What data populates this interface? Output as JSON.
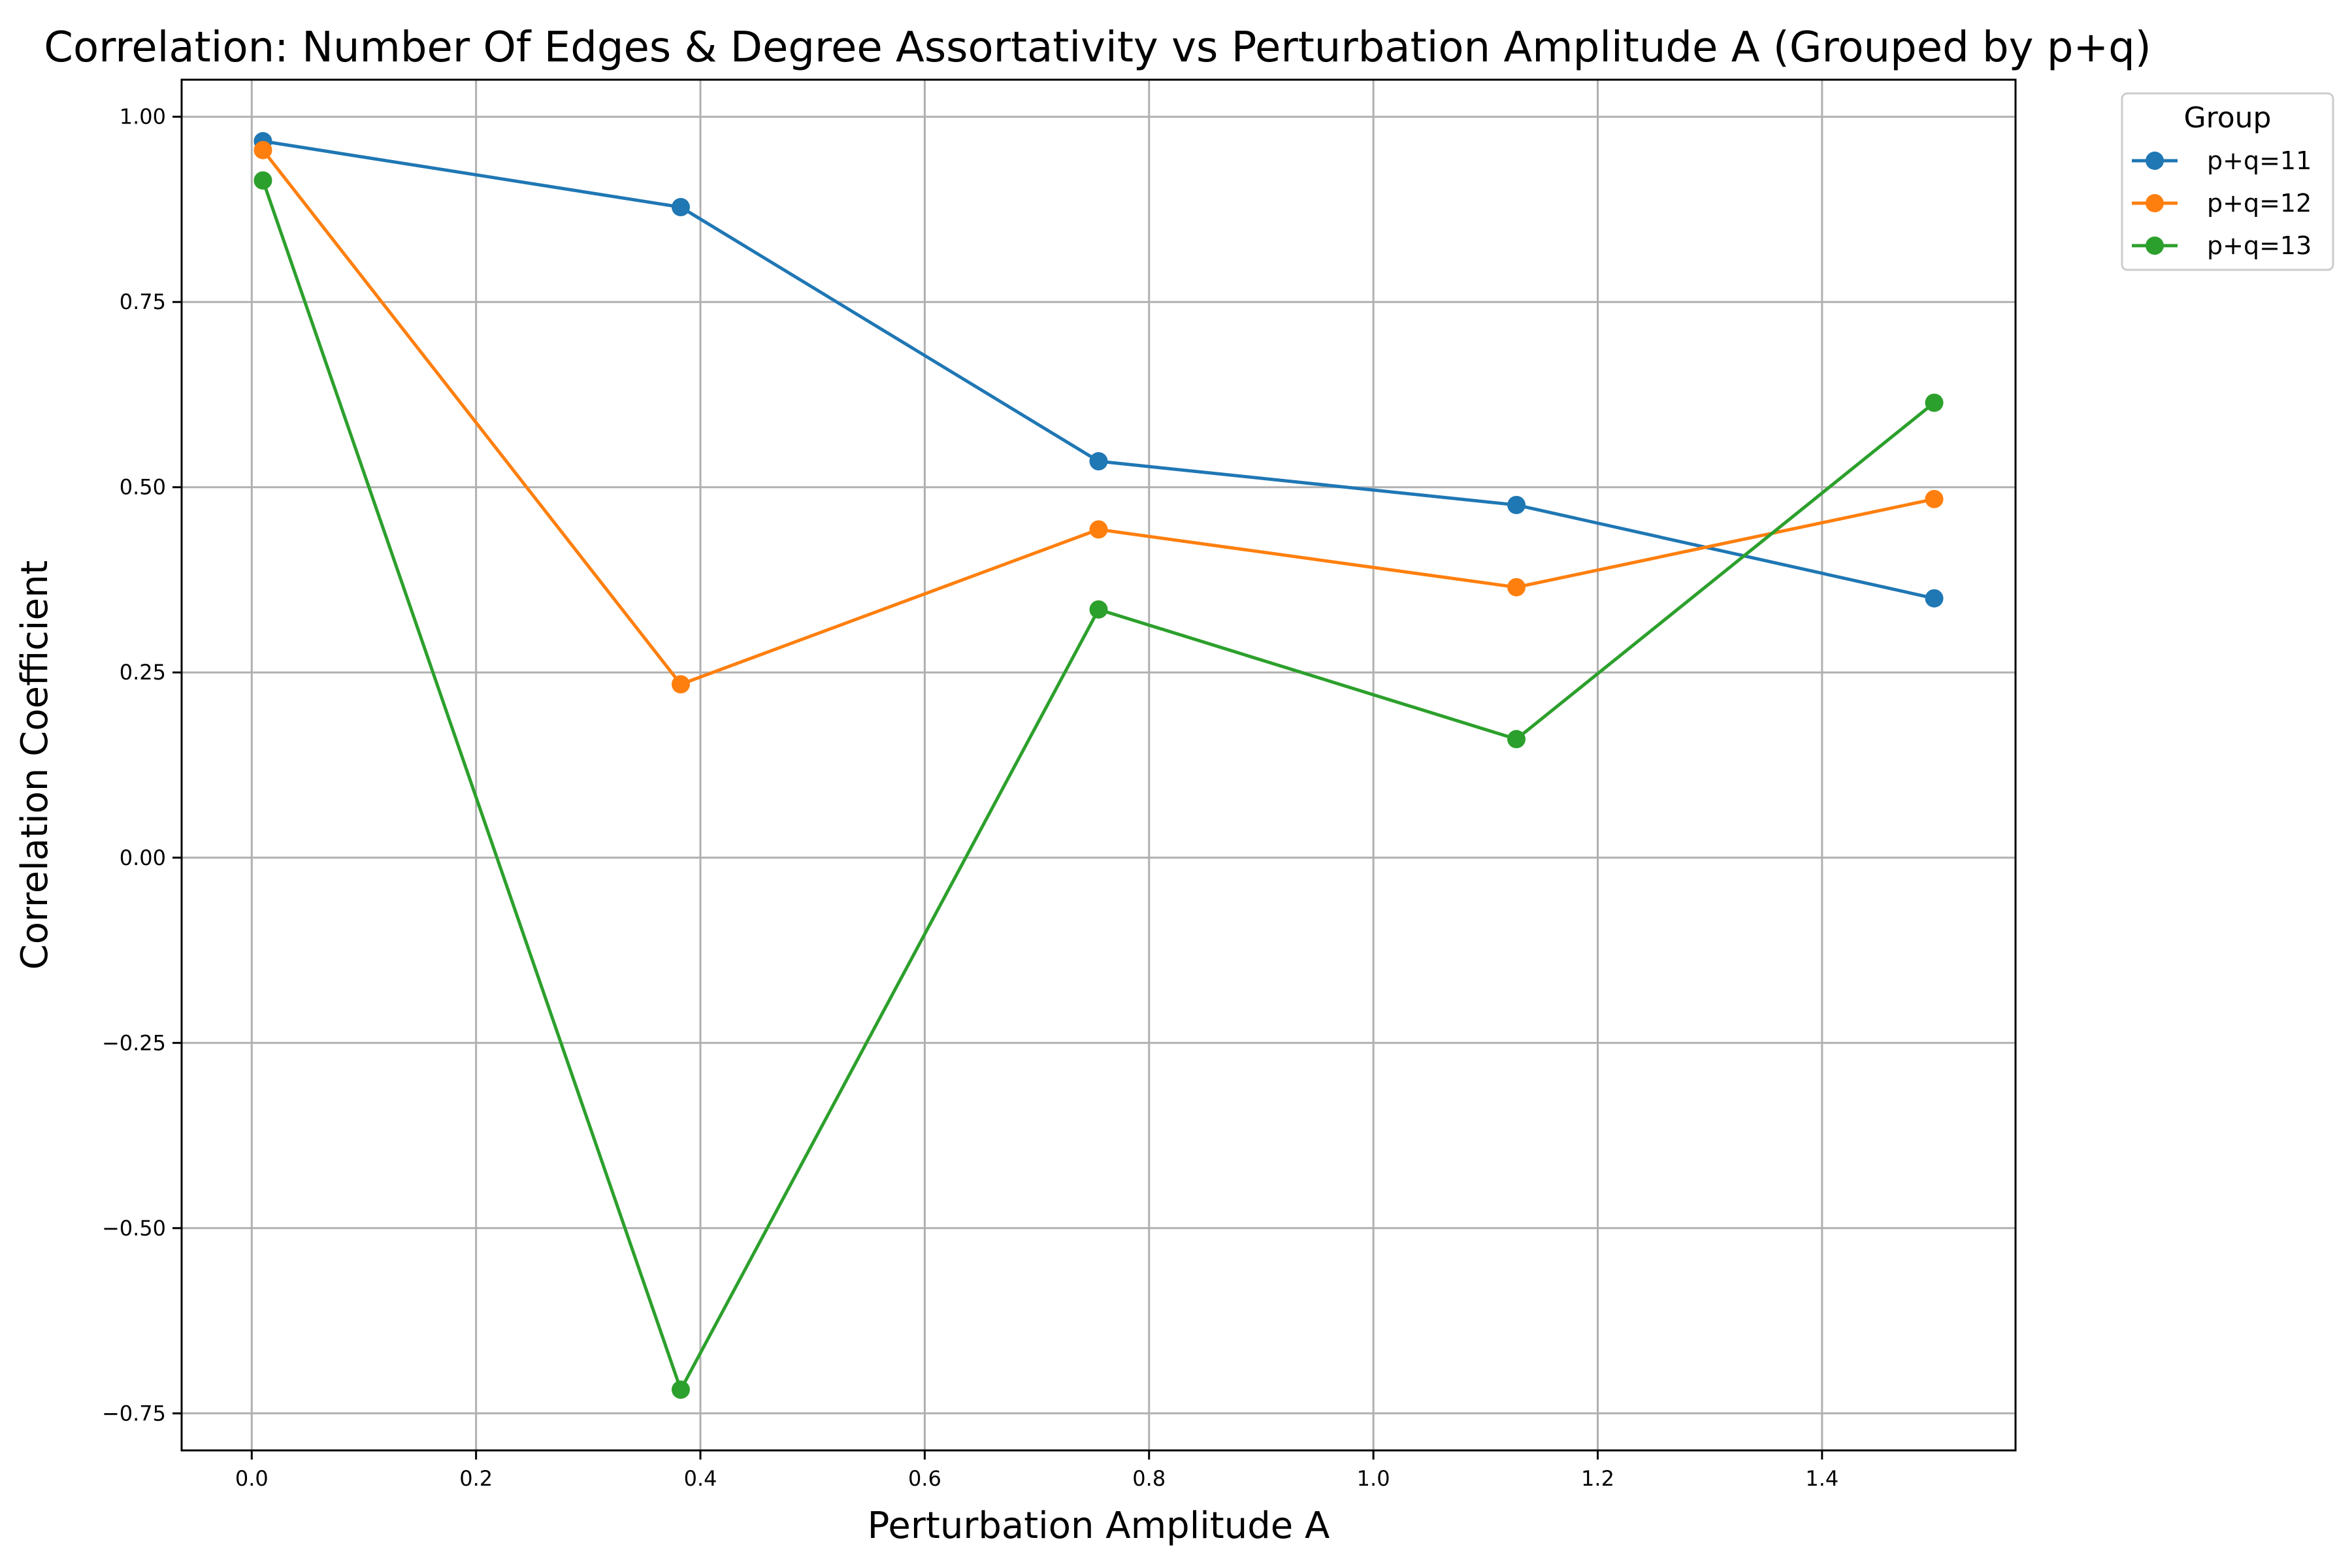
{
  "chart_data": {
    "type": "line",
    "title": "Correlation: Number Of Edges & Degree Assortativity vs Perturbation Amplitude A (Grouped by p+q)",
    "xlabel": "Perturbation Amplitude A",
    "ylabel": "Correlation Coefficient",
    "xlim": [
      -0.0625,
      1.5725
    ],
    "ylim": [
      -0.8,
      1.05
    ],
    "grid": true,
    "legend_title": "Group",
    "legend_placement": "outside-top-right",
    "x": [
      0.01,
      0.3825,
      0.755,
      1.1275,
      1.5
    ],
    "x_ticks": [
      0.0,
      0.2,
      0.4,
      0.6,
      0.8,
      1.0,
      1.2,
      1.4
    ],
    "x_tick_labels": [
      "0.0",
      "0.2",
      "0.4",
      "0.6",
      "0.8",
      "1.0",
      "1.2",
      "1.4"
    ],
    "y_ticks": [
      -0.75,
      -0.5,
      -0.25,
      0.0,
      0.25,
      0.5,
      0.75,
      1.0
    ],
    "y_tick_labels": [
      "−0.75",
      "−0.50",
      "−0.25",
      "0.00",
      "0.25",
      "0.50",
      "0.75",
      "1.00"
    ],
    "series": [
      {
        "name": "p+q=11",
        "color": "#1f77b4",
        "values": [
          0.967,
          0.878,
          0.535,
          0.476,
          0.35
        ]
      },
      {
        "name": "p+q=12",
        "color": "#ff7f0e",
        "values": [
          0.955,
          0.234,
          0.443,
          0.365,
          0.484
        ]
      },
      {
        "name": "p+q=13",
        "color": "#2ca02c",
        "values": [
          0.914,
          -0.718,
          0.335,
          0.16,
          0.614
        ]
      }
    ]
  }
}
